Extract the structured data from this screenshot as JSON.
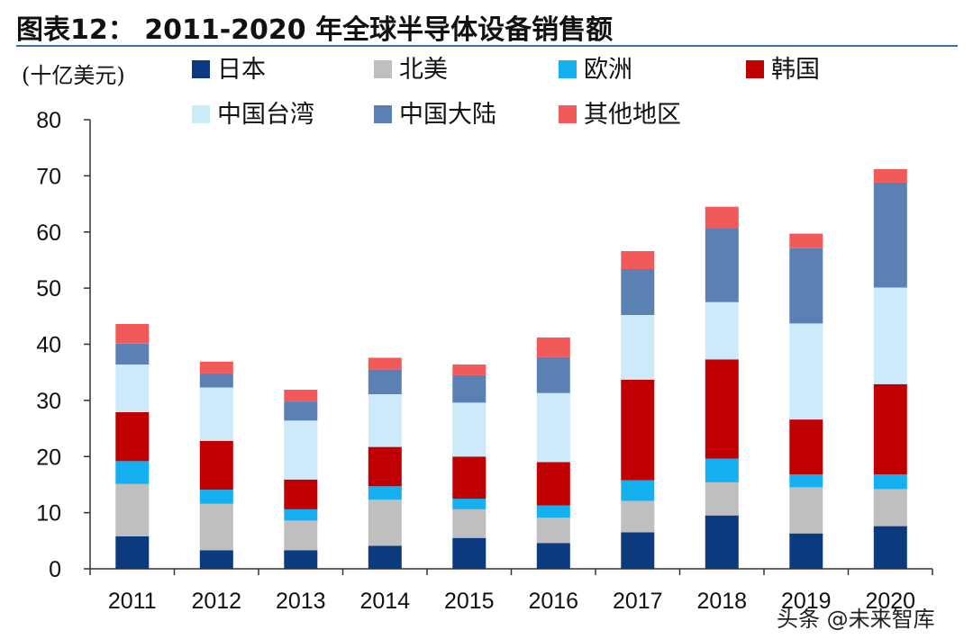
{
  "header": {
    "title": "图表12：  2011-2020 年全球半导体设备销售额",
    "unit": "(十亿美元)"
  },
  "watermark": "头条 @未来智库",
  "colors": {
    "japan": "#0b3a7e",
    "north_america": "#bfbfbf",
    "europe": "#14b0ef",
    "korea": "#c00000",
    "taiwan": "#cdeafb",
    "mainland": "#5b80b4",
    "other": "#f25a5a"
  },
  "chart_data": {
    "type": "bar",
    "stacked": true,
    "categories": [
      "2011",
      "2012",
      "2013",
      "2014",
      "2015",
      "2016",
      "2017",
      "2018",
      "2019",
      "2020"
    ],
    "ylim": [
      0,
      80
    ],
    "yticks": [
      0,
      10,
      20,
      30,
      40,
      50,
      60,
      70,
      80
    ],
    "ylabel": "(十亿美元)",
    "legend_position": "top",
    "series": [
      {
        "name": "日本",
        "color": "#0b3a7e",
        "values": [
          5.8,
          3.3,
          3.3,
          4.1,
          5.5,
          4.6,
          6.5,
          9.5,
          6.3,
          7.6
        ]
      },
      {
        "name": "北美",
        "color": "#bfbfbf",
        "values": [
          9.3,
          8.3,
          5.3,
          8.2,
          5.1,
          4.5,
          5.6,
          5.9,
          8.2,
          6.6
        ]
      },
      {
        "name": "欧洲",
        "color": "#14b0ef",
        "values": [
          4.1,
          2.5,
          2.0,
          2.4,
          1.9,
          2.2,
          3.7,
          4.2,
          2.3,
          2.6
        ]
      },
      {
        "name": "韩国",
        "color": "#c00000",
        "values": [
          8.7,
          8.7,
          5.3,
          7.0,
          7.5,
          7.7,
          17.9,
          17.7,
          9.8,
          16.1
        ]
      },
      {
        "name": "中国台湾",
        "color": "#cdeafb",
        "values": [
          8.5,
          9.5,
          10.5,
          9.4,
          9.6,
          12.3,
          11.5,
          10.2,
          17.1,
          17.2
        ]
      },
      {
        "name": "中国大陆",
        "color": "#5b80b4",
        "values": [
          3.7,
          2.5,
          3.4,
          4.4,
          4.9,
          6.4,
          8.2,
          13.1,
          13.4,
          18.7
        ]
      },
      {
        "name": "其他地区",
        "color": "#f25a5a",
        "values": [
          3.5,
          2.1,
          2.1,
          2.1,
          1.9,
          3.5,
          3.2,
          3.9,
          2.6,
          2.4
        ]
      }
    ]
  }
}
